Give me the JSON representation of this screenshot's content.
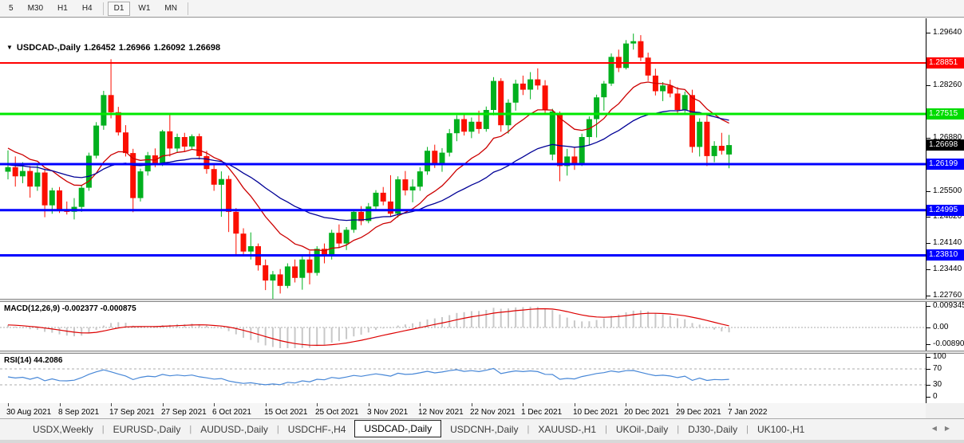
{
  "toolbar": {
    "timeframes": [
      {
        "label": "5"
      },
      {
        "label": "M30"
      },
      {
        "label": "H1"
      },
      {
        "label": "H4"
      },
      {
        "label": "D1"
      },
      {
        "label": "W1"
      },
      {
        "label": "MN"
      }
    ],
    "active_timeframe": "D1",
    "dividers_after": [
      "H4",
      "MN"
    ]
  },
  "chart": {
    "symbol_title": "USDCAD-,Daily",
    "open": "1.26452",
    "high": "1.26966",
    "low": "1.26092",
    "close": "1.26698"
  },
  "icons": {
    "dropdown": "▼",
    "tab_prev": "◀",
    "tab_next": "▶"
  },
  "chart_data": {
    "type": "candlestick",
    "symbol": "USDCAD",
    "timeframe": "Daily",
    "ylim": [
      1.2267,
      1.2987
    ],
    "x_dates": [
      "30 Aug 2021",
      "8 Sep 2021",
      "17 Sep 2021",
      "27 Sep 2021",
      "6 Oct 2021",
      "15 Oct 2021",
      "25 Oct 2021",
      "3 Nov 2021",
      "12 Nov 2021",
      "22 Nov 2021",
      "1 Dec 2021",
      "10 Dec 2021",
      "20 Dec 2021",
      "29 Dec 2021",
      "7 Jan 2022"
    ],
    "y_ticks": [
      {
        "label": "1.29640",
        "price": 1.2964
      },
      {
        "label": "1.28260",
        "price": 1.2826
      },
      {
        "label": "1.26880",
        "price": 1.2688
      },
      {
        "label": "1.25500",
        "price": 1.255
      },
      {
        "label": "1.24820",
        "price": 1.2482
      },
      {
        "label": "1.24140",
        "price": 1.2414
      },
      {
        "label": "1.23440",
        "price": 1.2344
      },
      {
        "label": "1.22760",
        "price": 1.2276
      }
    ],
    "levels": [
      {
        "price": 1.28851,
        "color": "#FF0000",
        "width": 2
      },
      {
        "price": 1.27515,
        "color": "#00E800",
        "width": 3
      },
      {
        "price": 1.26199,
        "color": "#0000FF",
        "width": 3
      },
      {
        "price": 1.24995,
        "color": "#0000FF",
        "width": 3
      },
      {
        "price": 1.2381,
        "color": "#0000FF",
        "width": 3
      }
    ],
    "price_badges": [
      {
        "label": "1.28851",
        "price": 1.28851,
        "bg": "#FF0000"
      },
      {
        "label": "1.27515",
        "price": 1.27515,
        "bg": "#00DB00"
      },
      {
        "label": "1.26698",
        "price": 1.26698,
        "bg": "#000000"
      },
      {
        "label": "1.26199",
        "price": 1.26199,
        "bg": "#0000FF"
      },
      {
        "label": "1.24995",
        "price": 1.24995,
        "bg": "#0000FF"
      },
      {
        "label": "1.23810",
        "price": 1.2381,
        "bg": "#0000FF"
      }
    ],
    "moving_averages": [
      {
        "name": "fast-ma",
        "period": 13,
        "color": "#CC0000"
      },
      {
        "name": "slow-ma",
        "period": 34,
        "color": "#000096"
      }
    ],
    "candles": [
      [
        1.26,
        1.2656,
        1.258,
        1.2612
      ],
      [
        1.2612,
        1.264,
        1.2561,
        1.2588
      ],
      [
        1.2588,
        1.2625,
        1.257,
        1.2602
      ],
      [
        1.2602,
        1.2615,
        1.2532,
        1.2561
      ],
      [
        1.2561,
        1.2622,
        1.255,
        1.2598
      ],
      [
        1.2598,
        1.2608,
        1.2481,
        1.2512
      ],
      [
        1.2512,
        1.2558,
        1.249,
        1.2551
      ],
      [
        1.2551,
        1.256,
        1.2492,
        1.2501
      ],
      [
        1.2501,
        1.2522,
        1.2488,
        1.2495
      ],
      [
        1.2495,
        1.2531,
        1.2475,
        1.2508
      ],
      [
        1.2508,
        1.2565,
        1.2495,
        1.2558
      ],
      [
        1.2558,
        1.265,
        1.255,
        1.2642
      ],
      [
        1.2642,
        1.273,
        1.2635,
        1.2721
      ],
      [
        1.2721,
        1.2812,
        1.271,
        1.2801
      ],
      [
        1.2801,
        1.2895,
        1.274,
        1.2756
      ],
      [
        1.2756,
        1.277,
        1.2695,
        1.2703
      ],
      [
        1.2703,
        1.2722,
        1.264,
        1.2649
      ],
      [
        1.2649,
        1.266,
        1.2494,
        1.2531
      ],
      [
        1.2531,
        1.2608,
        1.2522,
        1.2601
      ],
      [
        1.2601,
        1.2652,
        1.259,
        1.2643
      ],
      [
        1.2643,
        1.2661,
        1.2612,
        1.2622
      ],
      [
        1.2622,
        1.271,
        1.2615,
        1.2706
      ],
      [
        1.2706,
        1.2752,
        1.264,
        1.2661
      ],
      [
        1.2661,
        1.27,
        1.265,
        1.2691
      ],
      [
        1.2691,
        1.2702,
        1.2652,
        1.2666
      ],
      [
        1.2666,
        1.2698,
        1.266,
        1.2693
      ],
      [
        1.2693,
        1.27,
        1.2632,
        1.2641
      ],
      [
        1.2641,
        1.2655,
        1.2595,
        1.2607
      ],
      [
        1.2607,
        1.2618,
        1.255,
        1.2566
      ],
      [
        1.2566,
        1.2601,
        1.2482,
        1.2581
      ],
      [
        1.2581,
        1.259,
        1.2442,
        1.2495
      ],
      [
        1.2495,
        1.2505,
        1.2382,
        1.2438
      ],
      [
        1.2438,
        1.2452,
        1.238,
        1.2391
      ],
      [
        1.2391,
        1.2441,
        1.237,
        1.2405
      ],
      [
        1.2405,
        1.2412,
        1.2341,
        1.2355
      ],
      [
        1.2355,
        1.237,
        1.229,
        1.2315
      ],
      [
        1.2315,
        1.234,
        1.2251,
        1.2331
      ],
      [
        1.2331,
        1.2345,
        1.2281,
        1.2301
      ],
      [
        1.2301,
        1.236,
        1.2295,
        1.2352
      ],
      [
        1.2352,
        1.237,
        1.231,
        1.2322
      ],
      [
        1.2322,
        1.2378,
        1.2291,
        1.237
      ],
      [
        1.237,
        1.2392,
        1.2305,
        1.2335
      ],
      [
        1.2335,
        1.2405,
        1.2328,
        1.2398
      ],
      [
        1.2398,
        1.2412,
        1.236,
        1.2378
      ],
      [
        1.2378,
        1.2448,
        1.237,
        1.244
      ],
      [
        1.244,
        1.2462,
        1.24,
        1.2412
      ],
      [
        1.2412,
        1.2455,
        1.2395,
        1.2448
      ],
      [
        1.2448,
        1.2502,
        1.244,
        1.2495
      ],
      [
        1.2495,
        1.251,
        1.246,
        1.2471
      ],
      [
        1.2471,
        1.2518,
        1.2465,
        1.2509
      ],
      [
        1.2509,
        1.2552,
        1.25,
        1.2545
      ],
      [
        1.2545,
        1.256,
        1.2512,
        1.2522
      ],
      [
        1.2522,
        1.2591,
        1.2482,
        1.249
      ],
      [
        1.249,
        1.2588,
        1.248,
        1.258
      ],
      [
        1.258,
        1.2602,
        1.2538,
        1.2551
      ],
      [
        1.2551,
        1.258,
        1.252,
        1.2561
      ],
      [
        1.2561,
        1.2612,
        1.255,
        1.2601
      ],
      [
        1.2601,
        1.2665,
        1.2592,
        1.2655
      ],
      [
        1.2655,
        1.2671,
        1.261,
        1.2621
      ],
      [
        1.2621,
        1.2662,
        1.26,
        1.265
      ],
      [
        1.265,
        1.2712,
        1.264,
        1.2701
      ],
      [
        1.2701,
        1.2748,
        1.268,
        1.2738
      ],
      [
        1.2738,
        1.2752,
        1.2695,
        1.2705
      ],
      [
        1.2705,
        1.2742,
        1.2688,
        1.2731
      ],
      [
        1.2731,
        1.276,
        1.27,
        1.2712
      ],
      [
        1.2712,
        1.2771,
        1.2705,
        1.2762
      ],
      [
        1.2762,
        1.2848,
        1.2748,
        1.2838
      ],
      [
        1.2838,
        1.2845,
        1.2705,
        1.2722
      ],
      [
        1.2722,
        1.279,
        1.27,
        1.2781
      ],
      [
        1.2781,
        1.2841,
        1.276,
        1.2831
      ],
      [
        1.2831,
        1.2852,
        1.2801,
        1.2815
      ],
      [
        1.2815,
        1.2861,
        1.279,
        1.2842
      ],
      [
        1.2842,
        1.2871,
        1.2815,
        1.2826
      ],
      [
        1.2826,
        1.284,
        1.2751,
        1.2762
      ],
      [
        1.2645,
        1.2765,
        1.263,
        1.2758
      ],
      [
        1.275,
        1.2758,
        1.2575,
        1.2615
      ],
      [
        1.2615,
        1.266,
        1.259,
        1.264
      ],
      [
        1.264,
        1.2665,
        1.2605,
        1.2622
      ],
      [
        1.2622,
        1.27,
        1.2615,
        1.2691
      ],
      [
        1.2691,
        1.2745,
        1.267,
        1.2738
      ],
      [
        1.2738,
        1.2802,
        1.269,
        1.2795
      ],
      [
        1.2795,
        1.2838,
        1.276,
        1.2831
      ],
      [
        1.2831,
        1.291,
        1.2825,
        1.2901
      ],
      [
        1.2901,
        1.292,
        1.2861,
        1.2872
      ],
      [
        1.2872,
        1.2945,
        1.2868,
        1.2936
      ],
      [
        1.2936,
        1.2962,
        1.292,
        1.2942
      ],
      [
        1.2942,
        1.2958,
        1.289,
        1.2899
      ],
      [
        1.2899,
        1.2912,
        1.2838,
        1.2852
      ],
      [
        1.2852,
        1.287,
        1.28,
        1.2811
      ],
      [
        1.2811,
        1.2835,
        1.2785,
        1.2826
      ],
      [
        1.2826,
        1.2841,
        1.2795,
        1.2805
      ],
      [
        1.2805,
        1.2822,
        1.2752,
        1.2762
      ],
      [
        1.2762,
        1.281,
        1.2755,
        1.2801
      ],
      [
        1.2801,
        1.2815,
        1.265,
        1.2665
      ],
      [
        1.2665,
        1.274,
        1.264,
        1.2731
      ],
      [
        1.2731,
        1.2748,
        1.2615,
        1.2641
      ],
      [
        1.2641,
        1.268,
        1.2625,
        1.2668
      ],
      [
        1.2668,
        1.2702,
        1.2645,
        1.2655
      ],
      [
        1.26452,
        1.26966,
        1.26092,
        1.26698
      ]
    ]
  },
  "indicators": {
    "macd": {
      "label": "MACD(12,26,9) -0.002377 -0.000875",
      "params": [
        12,
        26,
        9
      ],
      "main_value": -0.002377,
      "signal_value": -0.000875,
      "axis_labels": [
        "0.009345",
        "0.00",
        "-0.008902"
      ]
    },
    "rsi": {
      "label": "RSI(14) 44.2086",
      "period": 14,
      "value": 44.2086,
      "axis_labels": [
        "100",
        "70",
        "30",
        "0"
      ],
      "levels": [
        70,
        30
      ]
    }
  },
  "tabs": {
    "items": [
      {
        "label": "USDX,Weekly"
      },
      {
        "label": "EURUSD-,Daily"
      },
      {
        "label": "AUDUSD-,Daily"
      },
      {
        "label": "USDCHF-,H4"
      },
      {
        "label": "USDCAD-,Daily"
      },
      {
        "label": "USDCNH-,Daily"
      },
      {
        "label": "XAUUSD-,H1"
      },
      {
        "label": "UKOil-,Daily"
      },
      {
        "label": "DJ30-,Daily"
      },
      {
        "label": "UK100-,H1"
      }
    ],
    "active_index": 4
  },
  "colors": {
    "bull": "#00B01E",
    "bear": "#FB0F00",
    "macd_hist": "#C8C8C8",
    "macd_signal": "#DD0000",
    "rsi_line": "#4787D7",
    "grid_dash": "#ABABAB"
  }
}
